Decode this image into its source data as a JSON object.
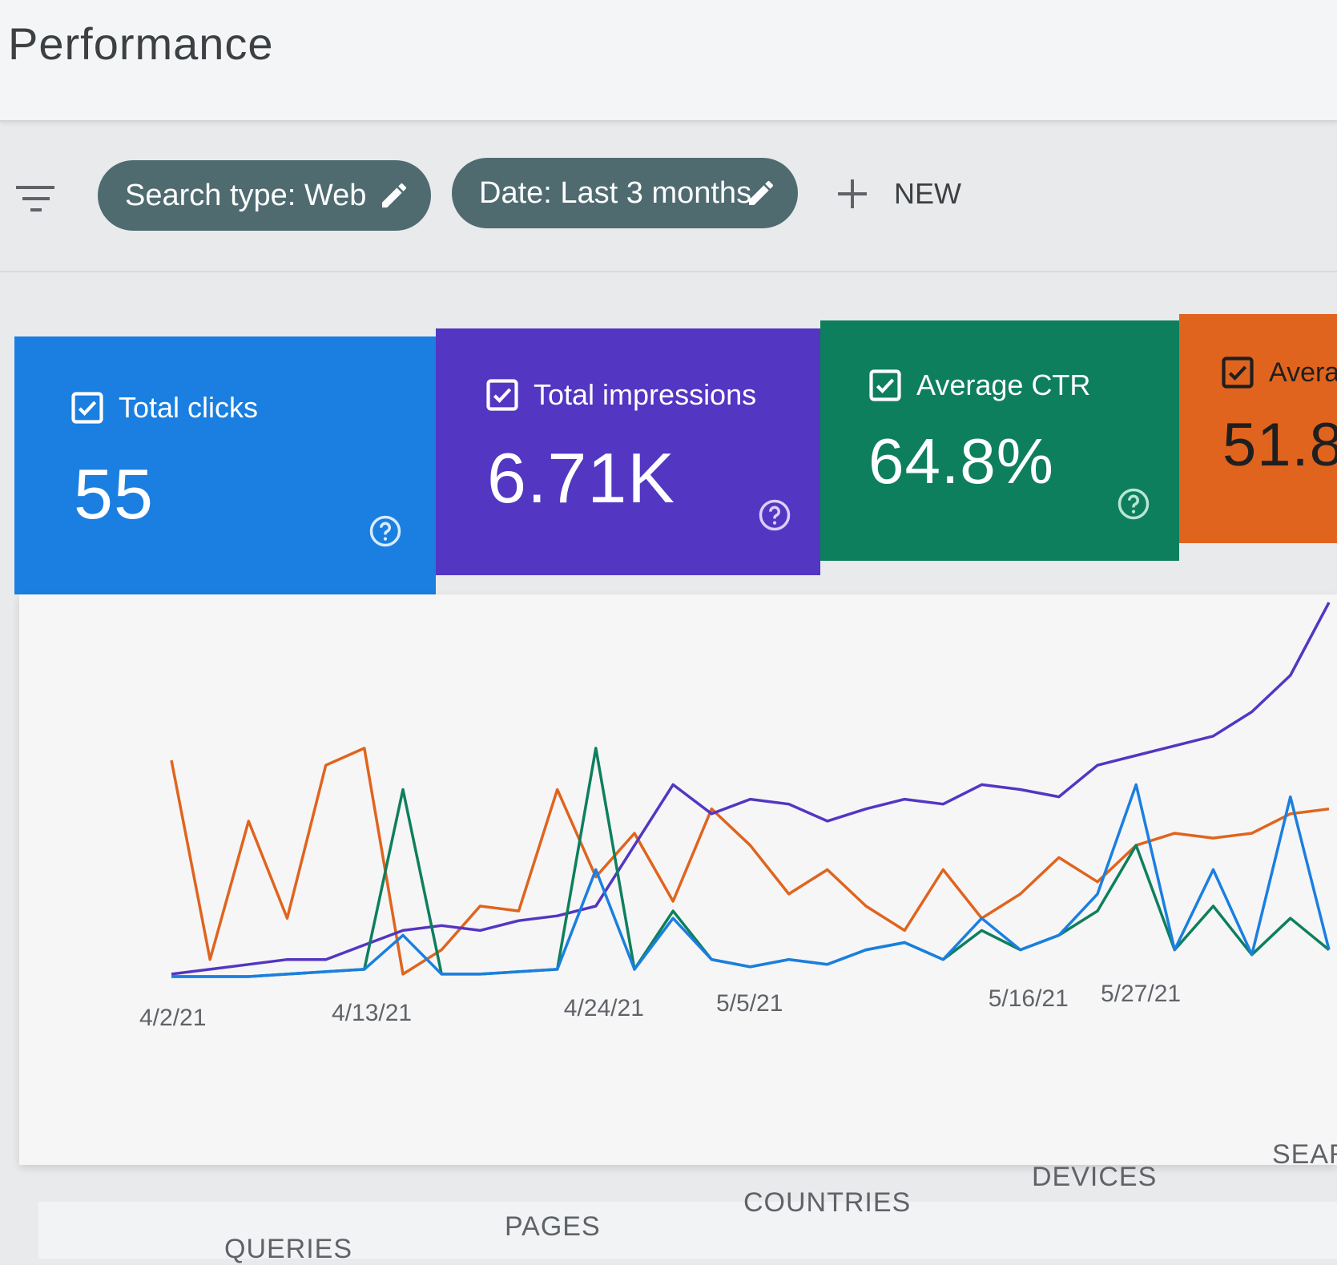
{
  "header": {
    "title": "Performance"
  },
  "filters": {
    "search_type": "Search type: Web",
    "date": "Date: Last 3 months",
    "new_label": "NEW"
  },
  "metrics": [
    {
      "label": "Total clicks",
      "value": "55",
      "color": "#1a7fe0"
    },
    {
      "label": "Total impressions",
      "value": "6.71K",
      "color": "#5336c2"
    },
    {
      "label": "Average CTR",
      "value": "64.8%",
      "color": "#0e7f5d"
    },
    {
      "label": "Averag",
      "value": "51.8",
      "color": "#e0641e"
    }
  ],
  "chart_data": {
    "type": "line",
    "x_tick_labels": [
      "4/2/21",
      "4/13/21",
      "4/24/21",
      "5/5/21",
      "5/16/21",
      "5/27/21"
    ],
    "x": [
      "4/2/21",
      "4/4/21",
      "4/6/21",
      "4/8/21",
      "4/10/21",
      "4/12/21",
      "4/14/21",
      "4/16/21",
      "4/18/21",
      "4/20/21",
      "4/22/21",
      "4/24/21",
      "4/26/21",
      "4/28/21",
      "4/30/21",
      "5/2/21",
      "5/4/21",
      "5/6/21",
      "5/8/21",
      "5/10/21",
      "5/12/21",
      "5/14/21",
      "5/16/21",
      "5/18/21",
      "5/20/21",
      "5/22/21",
      "5/24/21",
      "5/26/21",
      "5/28/21",
      "5/30/21",
      "6/1/21"
    ],
    "series": [
      {
        "color": "#e0641e",
        "values": [
          90,
          8,
          65,
          25,
          88,
          95,
          2,
          12,
          30,
          28,
          78,
          42,
          60,
          32,
          70,
          55,
          35,
          45,
          30,
          20,
          45,
          25,
          35,
          50,
          40,
          55,
          60,
          58,
          60,
          68,
          70
        ]
      },
      {
        "color": "#5336c2",
        "values": [
          2,
          4,
          6,
          8,
          8,
          14,
          20,
          22,
          20,
          24,
          26,
          30,
          55,
          80,
          68,
          74,
          72,
          65,
          70,
          74,
          72,
          80,
          78,
          75,
          88,
          92,
          96,
          100,
          110,
          125,
          155
        ]
      },
      {
        "color": "#0e7f5d",
        "values": [
          1,
          1,
          1,
          2,
          3,
          4,
          78,
          2,
          2,
          3,
          4,
          95,
          4,
          28,
          8,
          5,
          8,
          6,
          12,
          15,
          8,
          20,
          12,
          18,
          28,
          55,
          12,
          30,
          10,
          25,
          12
        ]
      },
      {
        "color": "#1a7fe0",
        "values": [
          1,
          1,
          1,
          2,
          3,
          4,
          18,
          2,
          2,
          3,
          4,
          45,
          4,
          25,
          8,
          5,
          8,
          6,
          12,
          15,
          8,
          25,
          12,
          18,
          35,
          80,
          12,
          45,
          10,
          75,
          12
        ]
      }
    ],
    "grid": false,
    "legend": "none"
  },
  "tabs": [
    "QUERIES",
    "PAGES",
    "COUNTRIES",
    "DEVICES",
    "SEAR"
  ]
}
